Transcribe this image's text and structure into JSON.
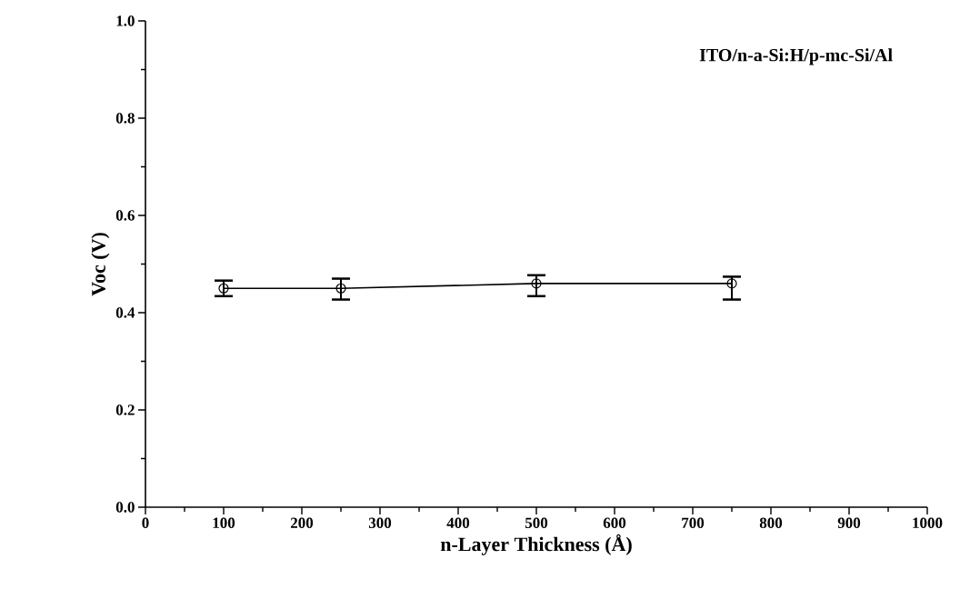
{
  "chart_data": {
    "type": "line",
    "xlabel": "n-Layer Thickness (Å)",
    "ylabel": "Voc (V)",
    "annotations": [
      "ITO/n-a-Si:H/p-mc-Si/Al"
    ],
    "x": [
      100,
      250,
      500,
      750
    ],
    "series": [
      {
        "color": "#000000",
        "values": [
          0.45,
          0.45,
          0.46,
          0.46
        ],
        "errors": [
          [
            0.434,
            0.466
          ],
          [
            0.427,
            0.47
          ],
          [
            0.434,
            0.477
          ],
          [
            0.427,
            0.474
          ]
        ]
      }
    ],
    "marker": "circle",
    "line_style": "solid",
    "xlim": [
      0,
      1000
    ],
    "xticks": [
      0,
      100,
      200,
      300,
      400,
      500,
      600,
      700,
      800,
      900,
      1000
    ],
    "ylim": [
      0,
      1.0
    ],
    "yticks": [
      {
        "value": 0,
        "label": "0.0"
      },
      {
        "value": 0.2,
        "label": "0.2"
      },
      {
        "value": 0.4,
        "label": "0.4"
      },
      {
        "value": 0.6,
        "label": "0.6"
      },
      {
        "value": 0.8,
        "label": "0.8"
      },
      {
        "value": 1.0,
        "label": "1.0"
      }
    ]
  }
}
